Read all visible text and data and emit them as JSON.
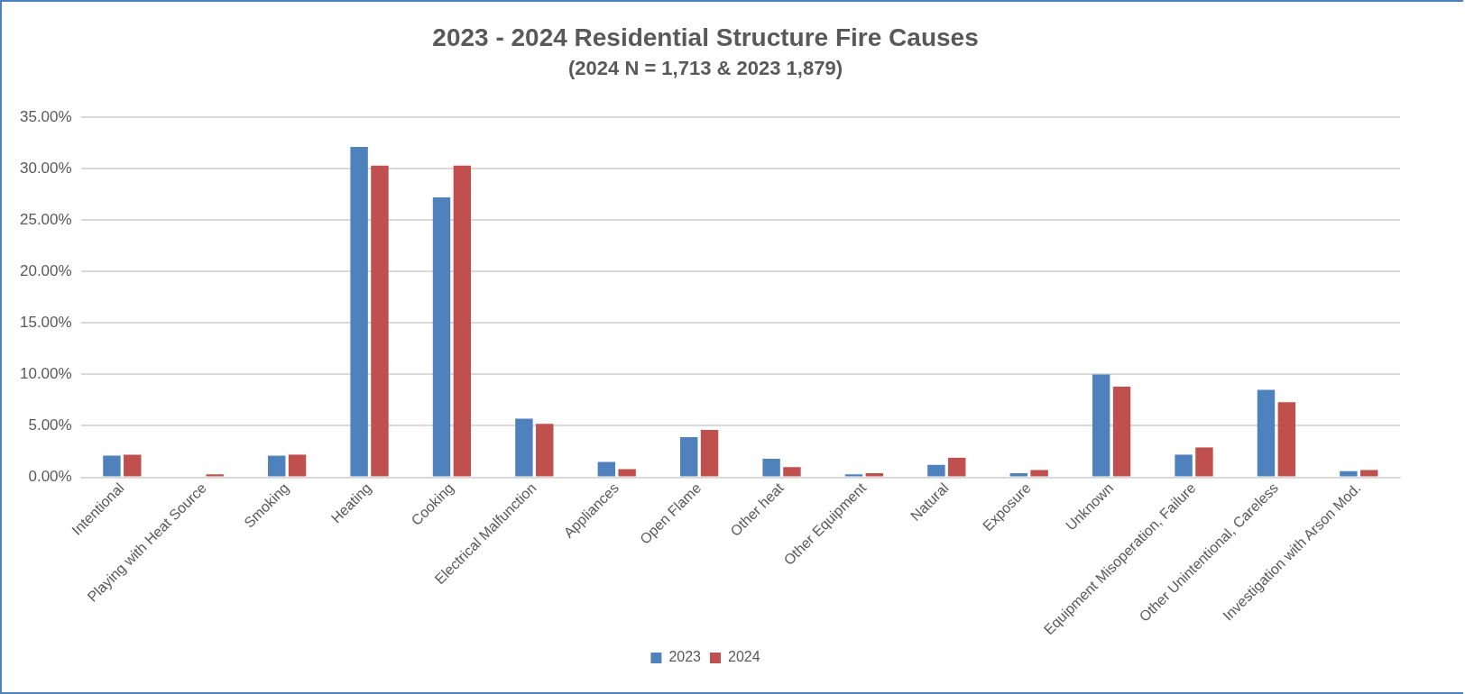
{
  "chart_data": {
    "type": "bar",
    "title": "2023 - 2024 Residential Structure Fire Causes",
    "subtitle": "(2024 N = 1,713 & 2023 1,879)",
    "categories": [
      "Intentional",
      "Playing with Heat Source",
      "Smoking",
      "Heating",
      "Cooking",
      "Electrical Malfunction",
      "Appliances",
      "Open Flame",
      "Other heat",
      "Other Equipment",
      "Natural",
      "Exposure",
      "Unknown",
      "Equipment Misoperation, Failure",
      "Other Unintentional, Careless",
      "Investigation with Arson Mod."
    ],
    "series": [
      {
        "name": "2023",
        "color": "#4f81bd",
        "values": [
          2.1,
          0,
          2.1,
          32.1,
          27.2,
          5.7,
          1.5,
          3.9,
          1.8,
          0.3,
          1.2,
          0.4,
          10.0,
          2.2,
          8.5,
          0.6
        ]
      },
      {
        "name": "2024",
        "color": "#c0504d",
        "values": [
          2.2,
          0.3,
          2.2,
          30.3,
          30.3,
          5.2,
          0.8,
          4.6,
          1.0,
          0.4,
          1.9,
          0.7,
          8.8,
          2.9,
          7.3,
          0.7
        ]
      }
    ],
    "ylim": [
      0,
      35
    ],
    "yticks": [
      {
        "value": 0,
        "label": "0.00%"
      },
      {
        "value": 5,
        "label": "5.00%"
      },
      {
        "value": 10,
        "label": "10.00%"
      },
      {
        "value": 15,
        "label": "15.00%"
      },
      {
        "value": 20,
        "label": "20.00%"
      },
      {
        "value": 25,
        "label": "25.00%"
      },
      {
        "value": 30,
        "label": "30.00%"
      },
      {
        "value": 35,
        "label": "35.00%"
      }
    ],
    "grid": "y",
    "legend": "bottom"
  }
}
